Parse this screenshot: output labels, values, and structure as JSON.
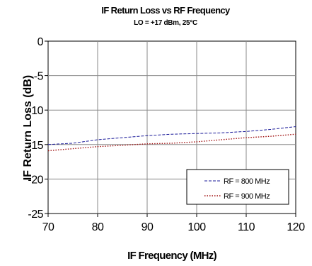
{
  "chart_data": {
    "type": "line",
    "title": "IF Return Loss vs RF Frequency",
    "subtitle": "LO = +17 dBm, 25°C",
    "xlabel": "IF Frequency (MHz)",
    "ylabel": "IF Return Loss (dB)",
    "xlim": [
      70,
      120
    ],
    "ylim": [
      -25,
      0
    ],
    "xticks": [
      70,
      80,
      90,
      100,
      110,
      120
    ],
    "yticks": [
      0,
      -5,
      -10,
      -15,
      -20,
      -25
    ],
    "grid": true,
    "legend_position": "bottom-right",
    "series": [
      {
        "name": "RF = 800 MHz",
        "color": "#1a1a99",
        "dash": "dash",
        "x": [
          70,
          75,
          80,
          85,
          90,
          95,
          100,
          105,
          110,
          115,
          120
        ],
        "y": [
          -15.0,
          -14.8,
          -14.3,
          -14.0,
          -13.7,
          -13.5,
          -13.4,
          -13.3,
          -13.1,
          -12.8,
          -12.4
        ]
      },
      {
        "name": "RF = 900 MHz",
        "color": "#a01010",
        "dash": "dot",
        "x": [
          70,
          75,
          80,
          85,
          90,
          95,
          100,
          105,
          110,
          115,
          120
        ],
        "y": [
          -15.9,
          -15.6,
          -15.3,
          -15.1,
          -14.9,
          -14.8,
          -14.6,
          -14.3,
          -14.0,
          -13.8,
          -13.5
        ]
      }
    ]
  }
}
